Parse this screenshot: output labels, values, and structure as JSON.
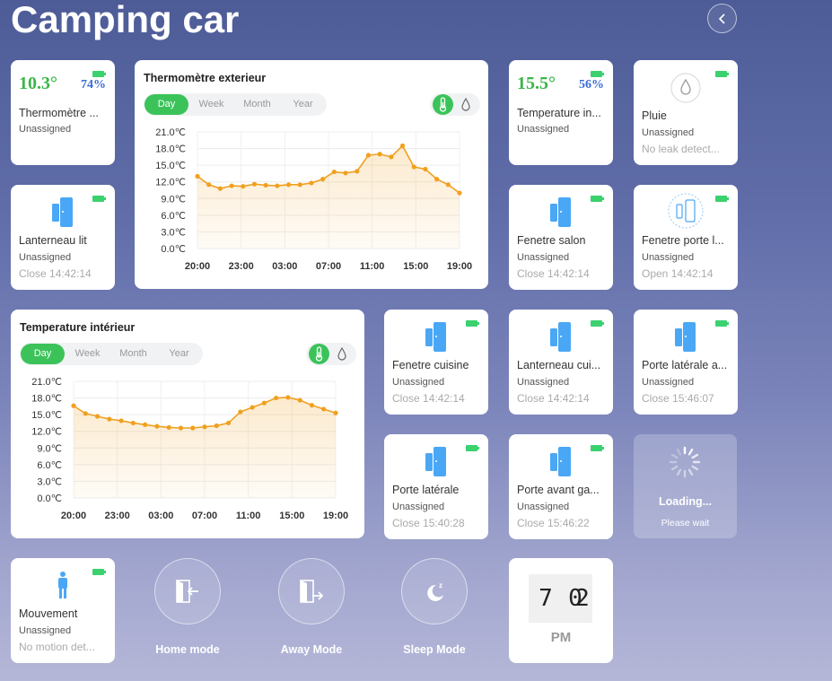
{
  "page": {
    "title": "Camping car"
  },
  "thermo_card": {
    "temp": "10.3°",
    "humidity": "74%",
    "name": "Thermomètre ...",
    "status": "Unassigned"
  },
  "temp_in_card": {
    "temp": "15.5°",
    "humidity": "56%",
    "name": "Temperature in...",
    "status": "Unassigned"
  },
  "pluie": {
    "name": "Pluie",
    "status": "Unassigned",
    "detail": "No leak detect..."
  },
  "lanterneau_lit": {
    "name": "Lanterneau lit",
    "status": "Unassigned",
    "detail": "Close 14:42:14"
  },
  "fenetre_salon": {
    "name": "Fenetre salon",
    "status": "Unassigned",
    "detail": "Close 14:42:14"
  },
  "fenetre_porte": {
    "name": "Fenetre porte l...",
    "status": "Unassigned",
    "detail": "Open 14:42:14"
  },
  "fenetre_cuisine": {
    "name": "Fenetre cuisine",
    "status": "Unassigned",
    "detail": "Close 14:42:14"
  },
  "lanterneau_cui": {
    "name": "Lanterneau cui...",
    "status": "Unassigned",
    "detail": "Close 14:42:14"
  },
  "porte_laterale_a": {
    "name": "Porte latérale a...",
    "status": "Unassigned",
    "detail": "Close 15:46:07"
  },
  "porte_laterale": {
    "name": "Porte latérale",
    "status": "Unassigned",
    "detail": "Close 15:40:28"
  },
  "porte_avant": {
    "name": "Porte avant ga...",
    "status": "Unassigned",
    "detail": "Close 15:46:22"
  },
  "mouvement": {
    "name": "Mouvement",
    "status": "Unassigned",
    "detail": "No motion det..."
  },
  "loading": {
    "title": "Loading...",
    "subtitle": "Please wait"
  },
  "modes": {
    "home": "Home mode",
    "away": "Away Mode",
    "sleep": "Sleep Mode"
  },
  "clock": {
    "d1": "7",
    "sep": ":",
    "d2": "0",
    "d3": "2",
    "ampm": "PM"
  },
  "tabs": {
    "day": "Day",
    "week": "Week",
    "month": "Month",
    "year": "Year"
  },
  "chart_data": [
    {
      "type": "area",
      "title": "Thermomètre exterieur",
      "x_ticks": [
        "20:00",
        "23:00",
        "03:00",
        "07:00",
        "11:00",
        "15:00",
        "19:00"
      ],
      "y_ticks": [
        "21.0℃",
        "18.0℃",
        "15.0℃",
        "12.0℃",
        "9.0℃",
        "6.0℃",
        "3.0℃",
        "0.0℃"
      ],
      "ylim": [
        0,
        21
      ],
      "grid": true,
      "series": [
        {
          "values": [
            13.0,
            11.5,
            10.8,
            11.3,
            11.2,
            11.6,
            11.4,
            11.3,
            11.5,
            11.5,
            11.8,
            12.5,
            13.8,
            13.6,
            13.9,
            16.8,
            17.0,
            16.5,
            18.5,
            14.7,
            14.3,
            12.5,
            11.5,
            10.0
          ]
        }
      ],
      "color": "#f0a020"
    },
    {
      "type": "area",
      "title": "Temperature intérieur",
      "x_ticks": [
        "20:00",
        "23:00",
        "03:00",
        "07:00",
        "11:00",
        "15:00",
        "19:00"
      ],
      "y_ticks": [
        "21.0℃",
        "18.0℃",
        "15.0℃",
        "12.0℃",
        "9.0℃",
        "6.0℃",
        "3.0℃",
        "0.0℃"
      ],
      "ylim": [
        0,
        21
      ],
      "grid": true,
      "series": [
        {
          "values": [
            16.6,
            15.2,
            14.7,
            14.2,
            13.9,
            13.5,
            13.2,
            12.9,
            12.7,
            12.6,
            12.6,
            12.8,
            13.0,
            13.5,
            15.5,
            16.3,
            17.1,
            18.0,
            18.1,
            17.6,
            16.7,
            16.0,
            15.3
          ]
        }
      ],
      "color": "#f0a020"
    }
  ]
}
